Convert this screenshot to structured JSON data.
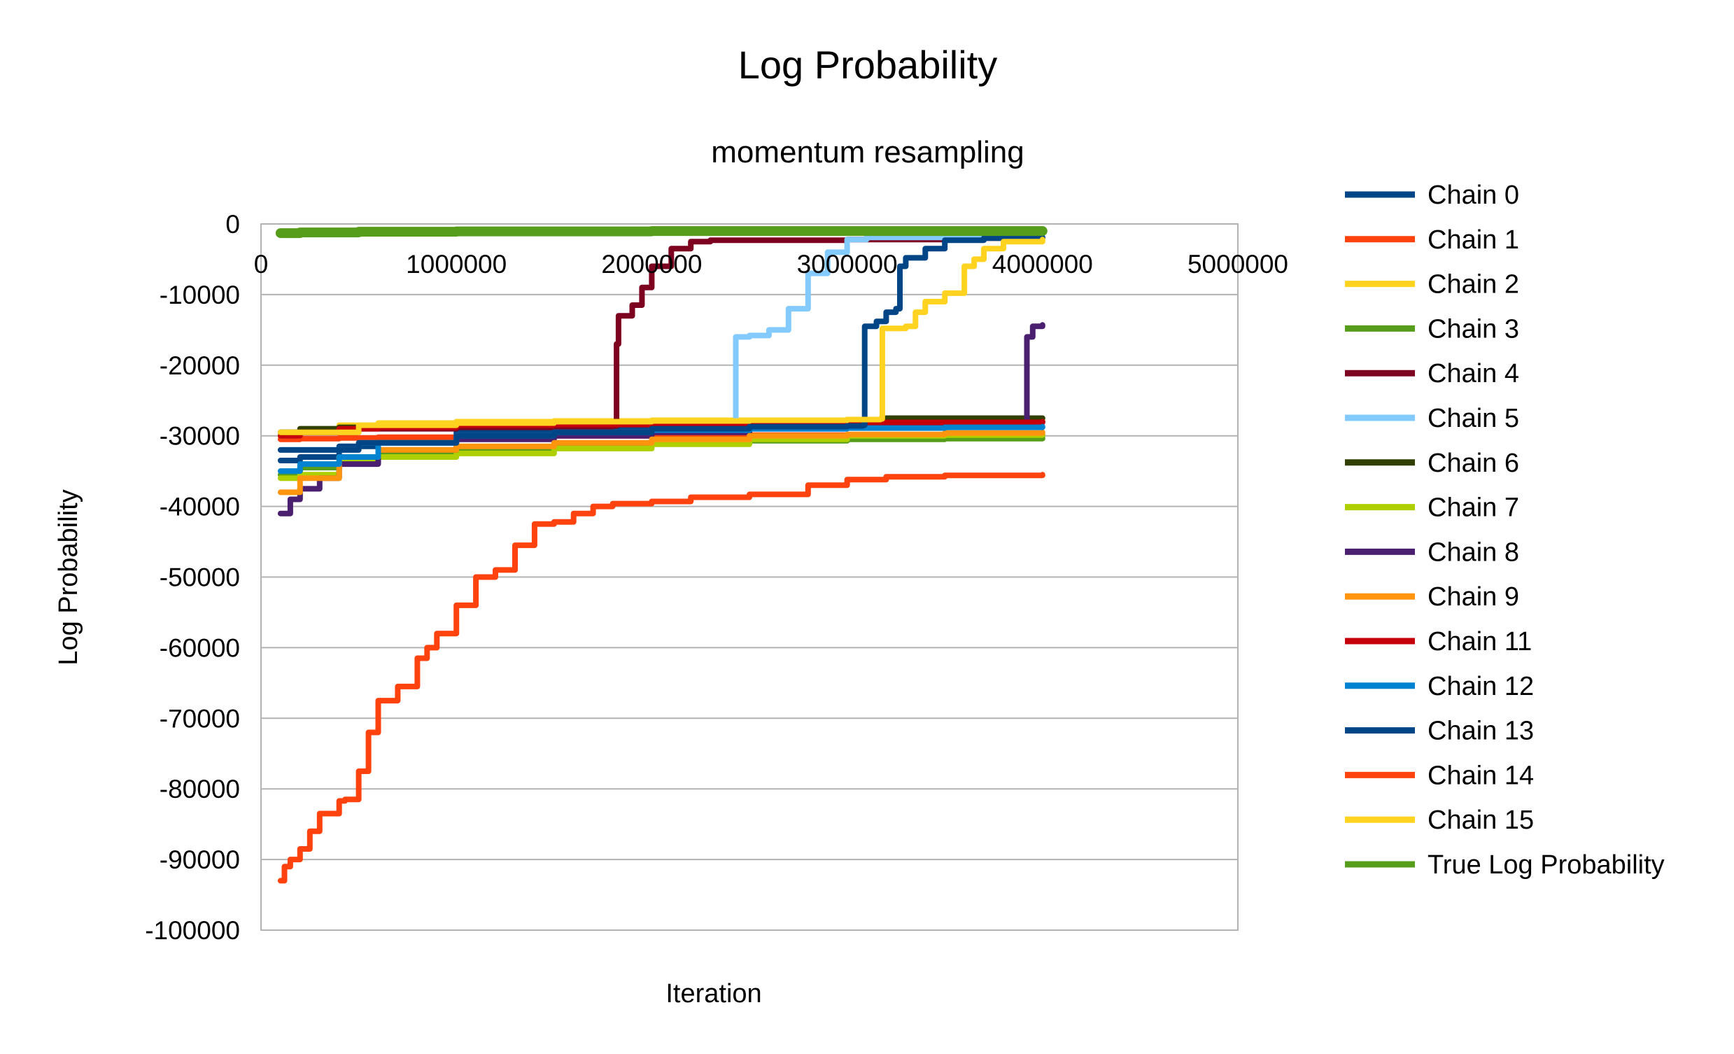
{
  "chart_data": {
    "type": "line",
    "title": "Log Probability",
    "subtitle": "momentum resampling",
    "xlabel": "Iteration",
    "ylabel": "Log Probability",
    "xlim": [
      0,
      5000000
    ],
    "ylim": [
      -100000,
      0
    ],
    "x_ticks": [
      "0",
      "1000000",
      "2000000",
      "3000000",
      "4000000",
      "5000000"
    ],
    "y_ticks": [
      "0",
      "-10000",
      "-20000",
      "-30000",
      "-40000",
      "-50000",
      "-60000",
      "-70000",
      "-80000",
      "-90000",
      "-100000"
    ],
    "grid": "horizontal major gridlines",
    "legend_position": "right",
    "series": [
      {
        "name": "Chain 0",
        "color": "#004586",
        "x": [
          100000,
          200000,
          400000,
          600000,
          1000000,
          1500000,
          2000000,
          2500000,
          3000000,
          3500000,
          4000000
        ],
        "y": [
          -33500,
          -33000,
          -31500,
          -30500,
          -29500,
          -29000,
          -28500,
          -28300,
          -28200,
          -28100,
          -28000
        ]
      },
      {
        "name": "Chain 1",
        "color": "#ff420e",
        "x": [
          100000,
          200000,
          400000,
          600000,
          1000000,
          1500000,
          2000000,
          2500000,
          3000000,
          3500000,
          4000000
        ],
        "y": [
          -30500,
          -30400,
          -30300,
          -30200,
          -30100,
          -30000,
          -30000,
          -29900,
          -29900,
          -29900,
          -29900
        ]
      },
      {
        "name": "Chain 2",
        "color": "#ffd320",
        "x": [
          100000,
          200000,
          400000,
          600000,
          1000000,
          1500000,
          2000000,
          2500000,
          3000000,
          3500000,
          4000000
        ],
        "y": [
          -30000,
          -29500,
          -28500,
          -28200,
          -28000,
          -27900,
          -27800,
          -27800,
          -27700,
          -27700,
          -27700
        ]
      },
      {
        "name": "Chain 3",
        "color": "#579d1c",
        "x": [
          100000,
          200000,
          400000,
          600000,
          1000000,
          1500000,
          2000000,
          2500000,
          3000000,
          3500000,
          4000000
        ],
        "y": [
          -35500,
          -34500,
          -33000,
          -32500,
          -32000,
          -31500,
          -31000,
          -30700,
          -30500,
          -30400,
          -30300
        ]
      },
      {
        "name": "Chain 4",
        "color": "#7e0021",
        "x": [
          100000,
          500000,
          1000000,
          1500000,
          1800000,
          1820000,
          1830000,
          1900000,
          1950000,
          2000000,
          2100000,
          2200000,
          2300000,
          2600000,
          3000000,
          3500000,
          4000000
        ],
        "y": [
          -29500,
          -29000,
          -28800,
          -28700,
          -28600,
          -17000,
          -13000,
          -11500,
          -9000,
          -6000,
          -3500,
          -2500,
          -2300,
          -2300,
          -2200,
          -2000,
          -1900
        ]
      },
      {
        "name": "Chain 5",
        "color": "#83caff",
        "x": [
          100000,
          500000,
          1000000,
          1500000,
          2000000,
          2400000,
          2420000,
          2430000,
          2500000,
          2600000,
          2700000,
          2800000,
          2900000,
          3000000,
          3100000,
          3500000,
          4000000
        ],
        "y": [
          -32000,
          -31000,
          -30000,
          -29500,
          -29000,
          -28800,
          -28700,
          -16000,
          -15800,
          -15000,
          -12000,
          -7000,
          -4000,
          -2200,
          -1900,
          -1800,
          -1800
        ]
      },
      {
        "name": "Chain 6",
        "color": "#314004",
        "x": [
          100000,
          200000,
          400000,
          600000,
          1000000,
          1500000,
          2000000,
          2500000,
          3000000,
          3200000,
          3500000,
          4000000
        ],
        "y": [
          -29500,
          -29000,
          -28800,
          -28700,
          -28500,
          -28300,
          -28200,
          -28100,
          -28000,
          -27500,
          -27500,
          -27500
        ]
      },
      {
        "name": "Chain 7",
        "color": "#aecf00",
        "x": [
          100000,
          200000,
          400000,
          600000,
          1000000,
          1500000,
          2000000,
          2500000,
          3000000,
          3500000,
          4000000
        ],
        "y": [
          -36000,
          -35500,
          -33500,
          -33000,
          -32500,
          -31800,
          -31200,
          -30500,
          -30000,
          -29900,
          -29800
        ]
      },
      {
        "name": "Chain 8",
        "color": "#4b1f6f",
        "x": [
          100000,
          150000,
          200000,
          300000,
          400000,
          600000,
          1000000,
          1500000,
          2000000,
          2500000,
          3000000,
          3500000,
          3900000,
          3920000,
          3950000,
          4000000
        ],
        "y": [
          -41000,
          -39000,
          -37500,
          -36000,
          -34000,
          -32000,
          -30500,
          -30000,
          -29500,
          -29000,
          -28700,
          -28600,
          -28500,
          -16000,
          -14500,
          -14300
        ]
      },
      {
        "name": "Chain 9",
        "color": "#ff950e",
        "x": [
          100000,
          200000,
          400000,
          600000,
          1000000,
          1500000,
          2000000,
          2500000,
          3000000,
          3500000,
          4000000
        ],
        "y": [
          -38000,
          -36000,
          -33000,
          -32000,
          -31500,
          -31000,
          -30500,
          -30000,
          -29800,
          -29600,
          -29500
        ]
      },
      {
        "name": "Chain 11",
        "color": "#c5000b",
        "x": [
          100000,
          200000,
          400000,
          600000,
          1000000,
          1500000,
          2000000,
          2500000,
          3000000,
          3500000,
          4000000
        ],
        "y": [
          -30000,
          -29500,
          -29000,
          -28800,
          -28500,
          -28400,
          -28300,
          -28200,
          -28100,
          -28100,
          -28000
        ]
      },
      {
        "name": "Chain 12",
        "color": "#0084d1",
        "x": [
          100000,
          200000,
          400000,
          600000,
          1000000,
          1500000,
          2000000,
          2500000,
          3000000,
          3500000,
          4000000
        ],
        "y": [
          -35000,
          -34000,
          -33000,
          -31000,
          -30000,
          -29500,
          -29200,
          -29000,
          -28900,
          -28800,
          -28700
        ]
      },
      {
        "name": "Chain 13",
        "color": "#004586",
        "x": [
          100000,
          500000,
          1000000,
          1500000,
          2000000,
          2500000,
          3000000,
          3080000,
          3090000,
          3150000,
          3200000,
          3250000,
          3270000,
          3300000,
          3400000,
          3500000,
          3700000,
          4000000
        ],
        "y": [
          -32000,
          -31000,
          -30000,
          -29500,
          -29000,
          -28700,
          -28600,
          -28500,
          -14500,
          -13800,
          -12500,
          -12000,
          -6000,
          -4800,
          -3500,
          -2300,
          -2000,
          -1900
        ]
      },
      {
        "name": "Chain 14",
        "color": "#ff420e",
        "x": [
          100000,
          120000,
          150000,
          200000,
          250000,
          300000,
          400000,
          430000,
          500000,
          550000,
          600000,
          700000,
          800000,
          850000,
          900000,
          1000000,
          1100000,
          1200000,
          1300000,
          1400000,
          1500000,
          1600000,
          1700000,
          1800000,
          2000000,
          2200000,
          2500000,
          2800000,
          3000000,
          3200000,
          3500000,
          4000000
        ],
        "y": [
          -93000,
          -91000,
          -90000,
          -88500,
          -86000,
          -83500,
          -81700,
          -81500,
          -77500,
          -72000,
          -67500,
          -65500,
          -61500,
          -60000,
          -58000,
          -54000,
          -50000,
          -49000,
          -45500,
          -42500,
          -42200,
          -41000,
          -40000,
          -39600,
          -39300,
          -38700,
          -38300,
          -37000,
          -36200,
          -35800,
          -35600,
          -35500
        ]
      },
      {
        "name": "Chain 15",
        "color": "#ffd320",
        "x": [
          100000,
          500000,
          1000000,
          1500000,
          2000000,
          2500000,
          3000000,
          3170000,
          3180000,
          3300000,
          3350000,
          3400000,
          3500000,
          3600000,
          3650000,
          3700000,
          3800000,
          4000000
        ],
        "y": [
          -29500,
          -28500,
          -28200,
          -28000,
          -27900,
          -27800,
          -27700,
          -27600,
          -14800,
          -14500,
          -12500,
          -11000,
          -9800,
          -6000,
          -5000,
          -3500,
          -2500,
          -2200
        ]
      },
      {
        "name": "True Log Probability",
        "color": "#579d1c",
        "x": [
          100000,
          200000,
          500000,
          1000000,
          2000000,
          3000000,
          4000000
        ],
        "y": [
          -1300,
          -1200,
          -1100,
          -1050,
          -1000,
          -1000,
          -1000
        ]
      }
    ]
  }
}
